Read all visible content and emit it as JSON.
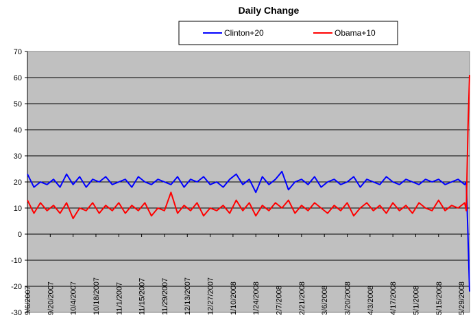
{
  "chart_data": {
    "type": "line",
    "title": "Daily Change",
    "xlabel": "",
    "ylabel": "",
    "ylim": [
      -30,
      70
    ],
    "yticks": [
      -30,
      -20,
      -10,
      0,
      10,
      20,
      30,
      40,
      50,
      60,
      70
    ],
    "x_range": [
      "9/6/2007",
      "6/3/2008"
    ],
    "x_tick_labels": [
      "9/6/2007",
      "9/20/2007",
      "10/4/2007",
      "10/18/2007",
      "11/1/2007",
      "11/15/2007",
      "11/29/2007",
      "12/13/2007",
      "12/27/2007",
      "1/10/2008",
      "1/24/2008",
      "2/7/2008",
      "2/21/2008",
      "3/6/2008",
      "3/20/2008",
      "4/3/2008",
      "4/17/2008",
      "5/1/2008",
      "5/15/2008",
      "5/29/2008"
    ],
    "grid": true,
    "legend_position": "top",
    "background": "#c0c0c0",
    "series": [
      {
        "name": "Clinton+20",
        "color": "#0000ff",
        "x": [
          "9/6/2007",
          "9/10/2007",
          "9/14/2007",
          "9/18/2007",
          "9/22/2007",
          "9/26/2007",
          "9/30/2007",
          "10/4/2007",
          "10/8/2007",
          "10/12/2007",
          "10/16/2007",
          "10/20/2007",
          "10/24/2007",
          "10/28/2007",
          "11/1/2007",
          "11/5/2007",
          "11/9/2007",
          "11/13/2007",
          "11/17/2007",
          "11/21/2007",
          "11/25/2007",
          "11/29/2007",
          "12/3/2007",
          "12/7/2007",
          "12/11/2007",
          "12/15/2007",
          "12/19/2007",
          "12/23/2007",
          "12/27/2007",
          "12/31/2007",
          "1/4/2008",
          "1/8/2008",
          "1/12/2008",
          "1/16/2008",
          "1/20/2008",
          "1/24/2008",
          "1/28/2008",
          "2/1/2008",
          "2/5/2008",
          "2/9/2008",
          "2/13/2008",
          "2/17/2008",
          "2/21/2008",
          "2/25/2008",
          "2/29/2008",
          "3/4/2008",
          "3/8/2008",
          "3/12/2008",
          "3/16/2008",
          "3/20/2008",
          "3/24/2008",
          "3/28/2008",
          "4/1/2008",
          "4/5/2008",
          "4/9/2008",
          "4/13/2008",
          "4/17/2008",
          "4/21/2008",
          "4/25/2008",
          "4/29/2008",
          "5/3/2008",
          "5/7/2008",
          "5/11/2008",
          "5/15/2008",
          "5/19/2008",
          "5/23/2008",
          "5/27/2008",
          "5/31/2008",
          "6/1/2008",
          "6/2/2008",
          "6/3/2008"
        ],
        "values": [
          23,
          18,
          20,
          19,
          21,
          18,
          23,
          19,
          22,
          18,
          21,
          20,
          22,
          19,
          20,
          21,
          18,
          22,
          20,
          19,
          21,
          20,
          19,
          22,
          18,
          21,
          20,
          22,
          19,
          20,
          18,
          21,
          23,
          19,
          21,
          16,
          22,
          19,
          21,
          24,
          17,
          20,
          21,
          19,
          22,
          18,
          20,
          21,
          19,
          20,
          22,
          18,
          21,
          20,
          19,
          22,
          20,
          19,
          21,
          20,
          19,
          21,
          20,
          21,
          19,
          20,
          21,
          19,
          20,
          0,
          -22
        ]
      },
      {
        "name": "Obama+10",
        "color": "#ff0000",
        "x": [
          "9/6/2007",
          "9/10/2007",
          "9/14/2007",
          "9/18/2007",
          "9/22/2007",
          "9/26/2007",
          "9/30/2007",
          "10/4/2007",
          "10/8/2007",
          "10/12/2007",
          "10/16/2007",
          "10/20/2007",
          "10/24/2007",
          "10/28/2007",
          "11/1/2007",
          "11/5/2007",
          "11/9/2007",
          "11/13/2007",
          "11/17/2007",
          "11/21/2007",
          "11/25/2007",
          "11/29/2007",
          "12/3/2007",
          "12/7/2007",
          "12/11/2007",
          "12/15/2007",
          "12/19/2007",
          "12/23/2007",
          "12/27/2007",
          "12/31/2007",
          "1/4/2008",
          "1/8/2008",
          "1/12/2008",
          "1/16/2008",
          "1/20/2008",
          "1/24/2008",
          "1/28/2008",
          "2/1/2008",
          "2/5/2008",
          "2/9/2008",
          "2/13/2008",
          "2/17/2008",
          "2/21/2008",
          "2/25/2008",
          "2/29/2008",
          "3/4/2008",
          "3/8/2008",
          "3/12/2008",
          "3/16/2008",
          "3/20/2008",
          "3/24/2008",
          "3/28/2008",
          "4/1/2008",
          "4/5/2008",
          "4/9/2008",
          "4/13/2008",
          "4/17/2008",
          "4/21/2008",
          "4/25/2008",
          "4/29/2008",
          "5/3/2008",
          "5/7/2008",
          "5/11/2008",
          "5/15/2008",
          "5/19/2008",
          "5/23/2008",
          "5/27/2008",
          "5/31/2008",
          "6/1/2008",
          "6/2/2008",
          "6/3/2008"
        ],
        "values": [
          13,
          8,
          12,
          9,
          11,
          8,
          12,
          6,
          10,
          9,
          12,
          8,
          11,
          9,
          12,
          8,
          11,
          9,
          12,
          7,
          10,
          9,
          16,
          8,
          11,
          9,
          12,
          7,
          10,
          9,
          11,
          8,
          13,
          9,
          12,
          7,
          11,
          9,
          12,
          10,
          13,
          8,
          11,
          9,
          12,
          10,
          8,
          11,
          9,
          12,
          7,
          10,
          12,
          9,
          11,
          8,
          12,
          9,
          11,
          8,
          12,
          10,
          9,
          13,
          9,
          11,
          10,
          12,
          9,
          40,
          61
        ]
      }
    ]
  }
}
